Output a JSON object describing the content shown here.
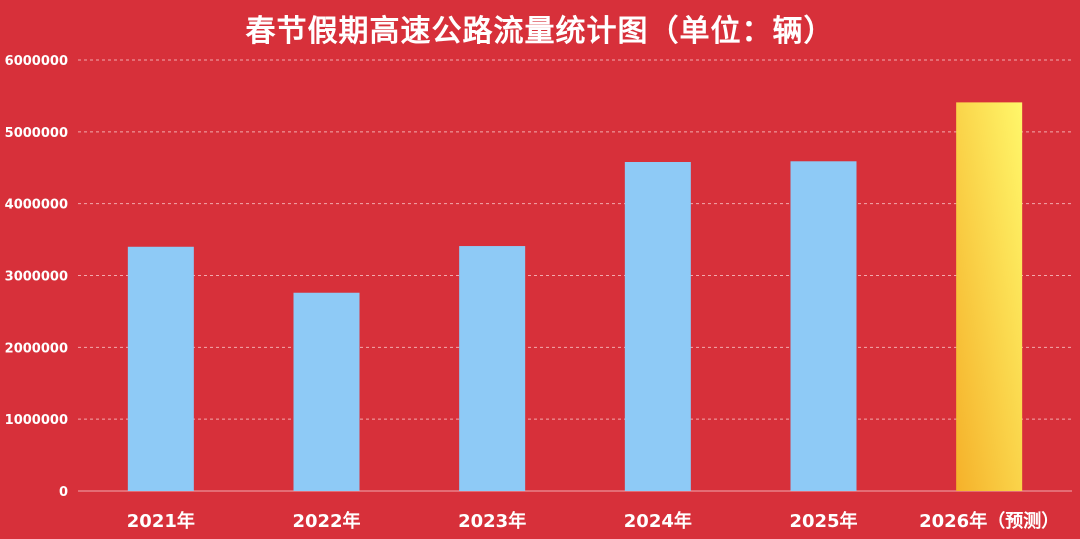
{
  "chart_data": {
    "type": "bar",
    "title": "春节假期高速公路流量统计图（单位：辆）",
    "categories": [
      "2021年",
      "2022年",
      "2023年",
      "2024年",
      "2025年",
      "2026年（预测）"
    ],
    "values": [
      3400000,
      2760000,
      3410000,
      4580000,
      4590000,
      5410000
    ],
    "ylim": [
      0,
      6000000
    ],
    "yticks": [
      "0",
      "1000000",
      "2000000",
      "3000000",
      "4000000",
      "5000000",
      "6000000"
    ],
    "grid": true,
    "legend": "none",
    "xlabel": "",
    "ylabel": ""
  },
  "colors": {
    "background": "#d7303a",
    "bar": "#8ecaf6",
    "forecast_bar_top": "#fff76a",
    "forecast_bar_bottom": "#f5b12a",
    "text": "#ffffff",
    "gridline": "#f2a9ad"
  }
}
